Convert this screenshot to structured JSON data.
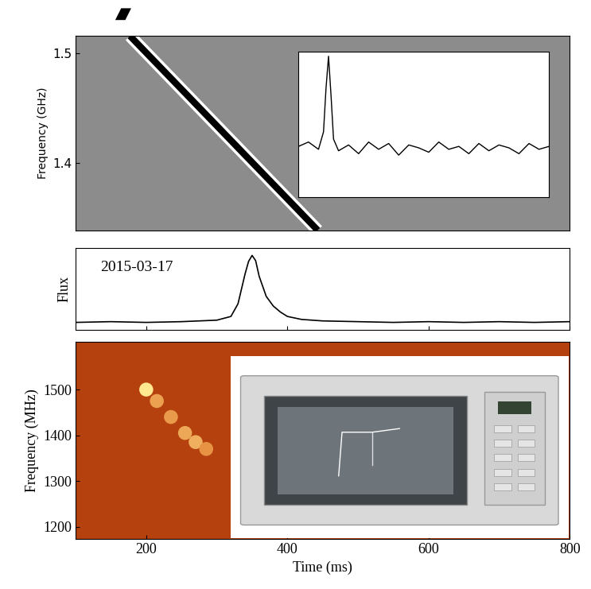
{
  "chart_data": [
    {
      "type": "waterfall",
      "ylabel": "Frequency (GHz)",
      "xlim": [
        0,
        1
      ],
      "ylim": [
        1.338,
        1.516
      ],
      "yticks": [
        1.4,
        1.5
      ],
      "tick_labels": "y",
      "sweep": {
        "x": [
          0.11,
          0.49
        ],
        "frequency": [
          1.516,
          1.338
        ]
      },
      "inset": {
        "type": "line",
        "xlim": [
          0,
          100
        ],
        "ylim": [
          0,
          1
        ],
        "tick_labels": false,
        "x": [
          0,
          4,
          8,
          10,
          11,
          12,
          13,
          14,
          16,
          20,
          24,
          28,
          32,
          36,
          40,
          44,
          48,
          52,
          56,
          60,
          64,
          68,
          72,
          76,
          80,
          84,
          88,
          92,
          96,
          100
        ],
        "values": [
          0.35,
          0.38,
          0.33,
          0.45,
          0.75,
          0.97,
          0.7,
          0.4,
          0.32,
          0.36,
          0.3,
          0.38,
          0.33,
          0.37,
          0.29,
          0.36,
          0.34,
          0.31,
          0.38,
          0.33,
          0.35,
          0.3,
          0.37,
          0.32,
          0.36,
          0.34,
          0.3,
          0.37,
          0.33,
          0.35
        ]
      }
    },
    {
      "type": "line",
      "annotation": "2015-03-17",
      "ylabel": "Flux",
      "xlim": [
        100,
        800
      ],
      "xticks": [
        200,
        400,
        600,
        800
      ],
      "ylim": [
        0,
        1.1
      ],
      "tick_labels": false,
      "x": [
        100,
        150,
        200,
        250,
        300,
        320,
        330,
        340,
        345,
        350,
        355,
        360,
        370,
        380,
        390,
        400,
        420,
        450,
        500,
        550,
        600,
        650,
        700,
        750,
        800
      ],
      "values": [
        0.1,
        0.11,
        0.1,
        0.11,
        0.13,
        0.18,
        0.35,
        0.75,
        0.92,
        1.0,
        0.93,
        0.72,
        0.45,
        0.32,
        0.24,
        0.18,
        0.14,
        0.12,
        0.11,
        0.1,
        0.11,
        0.1,
        0.11,
        0.1,
        0.11
      ]
    },
    {
      "type": "waterfall",
      "xlabel": "Time (ms)",
      "ylabel": "Frequency (MHz)",
      "xlim": [
        100,
        800
      ],
      "ylim": [
        1173,
        1605
      ],
      "xticks": [
        200,
        400,
        600,
        800
      ],
      "yticks": [
        1200,
        1300,
        1400,
        1500
      ],
      "sweep": {
        "x": [
          200,
          215,
          235,
          255,
          270,
          285
        ],
        "frequency": [
          1500,
          1475,
          1440,
          1405,
          1385,
          1370
        ],
        "intensity": [
          1.0,
          0.5,
          0.45,
          0.55,
          0.6,
          0.4
        ]
      }
    }
  ]
}
